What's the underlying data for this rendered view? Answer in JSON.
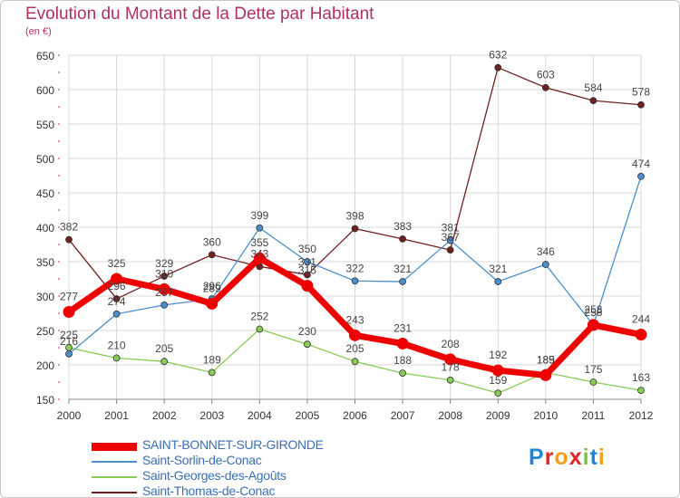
{
  "title": "Evolution du Montant de la Dette par Habitant",
  "unit": "(en €)",
  "brand": "Proxiti",
  "colors": {
    "grid": "#d8d8d8",
    "axis": "#888888",
    "tick_text": "#333333",
    "value_text": "#444444",
    "title": "#b03060",
    "legend_text": "#3b6fb6"
  },
  "chart_data": {
    "type": "line",
    "title": "Evolution du Montant de la Dette par Habitant",
    "ylabel": "(en €)",
    "xlabel": "",
    "x": [
      "2000",
      "2001",
      "2002",
      "2003",
      "2004",
      "2005",
      "2006",
      "2007",
      "2008",
      "2009",
      "2010",
      "2011",
      "2012"
    ],
    "ylim": [
      150,
      650
    ],
    "yticks": [
      150,
      200,
      250,
      300,
      350,
      400,
      450,
      500,
      550,
      600,
      650
    ],
    "grid": true,
    "legend_position": "bottom-left",
    "series": [
      {
        "name": "SAINT-BONNET-SUR-GIRONDE",
        "color": "#ee0000",
        "values": [
          277,
          325,
          310,
          289,
          355,
          315,
          243,
          231,
          208,
          192,
          185,
          258,
          244
        ]
      },
      {
        "name": "Saint-Sorlin-de-Conac",
        "color": "#4a8fd0",
        "values": [
          216,
          274,
          287,
          296,
          399,
          350,
          322,
          321,
          381,
          321,
          346,
          258,
          474
        ]
      },
      {
        "name": "Saint-Georges-des-Agoûts",
        "color": "#88cc55",
        "values": [
          225,
          210,
          205,
          189,
          252,
          230,
          205,
          188,
          178,
          159,
          189,
          175,
          163
        ]
      },
      {
        "name": "Saint-Thomas-de-Conac",
        "color": "#702020",
        "values": [
          382,
          296,
          329,
          360,
          343,
          331,
          398,
          383,
          367,
          632,
          603,
          584,
          578
        ]
      }
    ]
  }
}
